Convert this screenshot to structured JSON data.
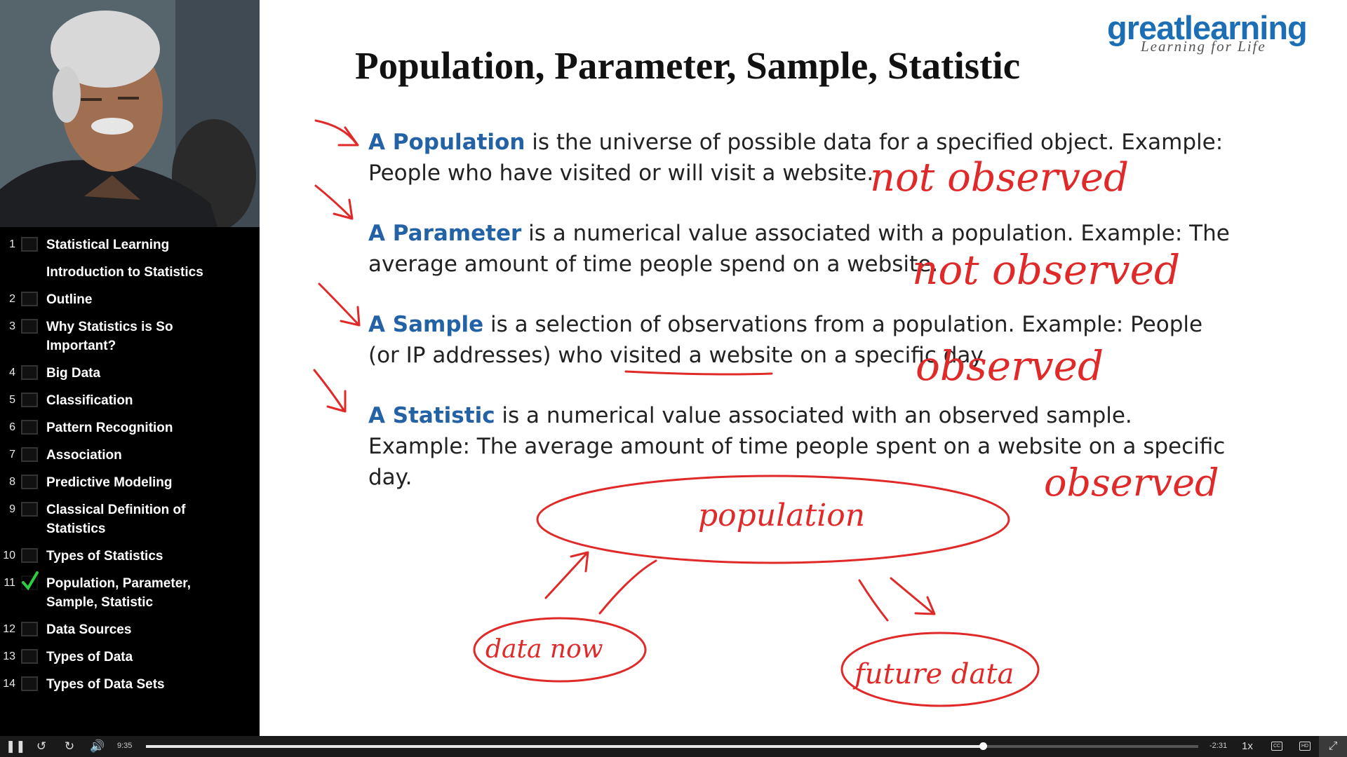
{
  "slide": {
    "title": "Population, Parameter, Sample, Statistic",
    "logo": {
      "brand": "greatlearning",
      "tagline": "Learning for Life"
    },
    "definitions": [
      {
        "term": "A Population",
        "text": " is the universe of possible data for a specified object. Example: People who have visited or will visit a website."
      },
      {
        "term": "A Parameter",
        "text": " is a numerical value associated with a population. Example: The average amount of time people spend on a website."
      },
      {
        "term": "A Sample",
        "text": " is a selection of observations from a population. Example: People (or IP addresses) who visited a website on a specific day."
      },
      {
        "term": "A Statistic",
        "text": " is a numerical value associated with an observed sample. Example: The average amount of time people spent on a website on a specific day."
      }
    ],
    "annotations": [
      "not observed",
      "not observed",
      "observed",
      "observed",
      "population",
      "data now",
      "future data"
    ],
    "ink_color": "#e02a2a",
    "term_color": "#2462a6"
  },
  "chapters": [
    {
      "num": "1",
      "title": "Statistical Learning",
      "done": false
    },
    {
      "num": "",
      "title": "Introduction to Statistics",
      "done": false
    },
    {
      "num": "2",
      "title": "Outline",
      "done": false
    },
    {
      "num": "3",
      "title": "Why Statistics is So Important?",
      "done": false
    },
    {
      "num": "4",
      "title": "Big Data",
      "done": false
    },
    {
      "num": "5",
      "title": "Classification",
      "done": false
    },
    {
      "num": "6",
      "title": "Pattern Recognition",
      "done": false
    },
    {
      "num": "7",
      "title": "Association",
      "done": false
    },
    {
      "num": "8",
      "title": "Predictive Modeling",
      "done": false
    },
    {
      "num": "9",
      "title": "Classical Definition of Statistics",
      "done": false
    },
    {
      "num": "10",
      "title": "Types of Statistics",
      "done": false
    },
    {
      "num": "11",
      "title": "Population, Parameter, Sample, Statistic",
      "done": true
    },
    {
      "num": "12",
      "title": "Data Sources",
      "done": false
    },
    {
      "num": "13",
      "title": "Types of Data",
      "done": false
    },
    {
      "num": "14",
      "title": "Types of Data Sets",
      "done": false
    }
  ],
  "player": {
    "current_time": "9:35",
    "remaining_time": "-2:31",
    "progress": 0.795,
    "speed": "1x",
    "cc_label": "CC",
    "hd_label": "HD",
    "icons": [
      "pause-icon",
      "replay-icon",
      "forward-icon",
      "volume-icon",
      "exit-fullscreen-icon"
    ]
  }
}
